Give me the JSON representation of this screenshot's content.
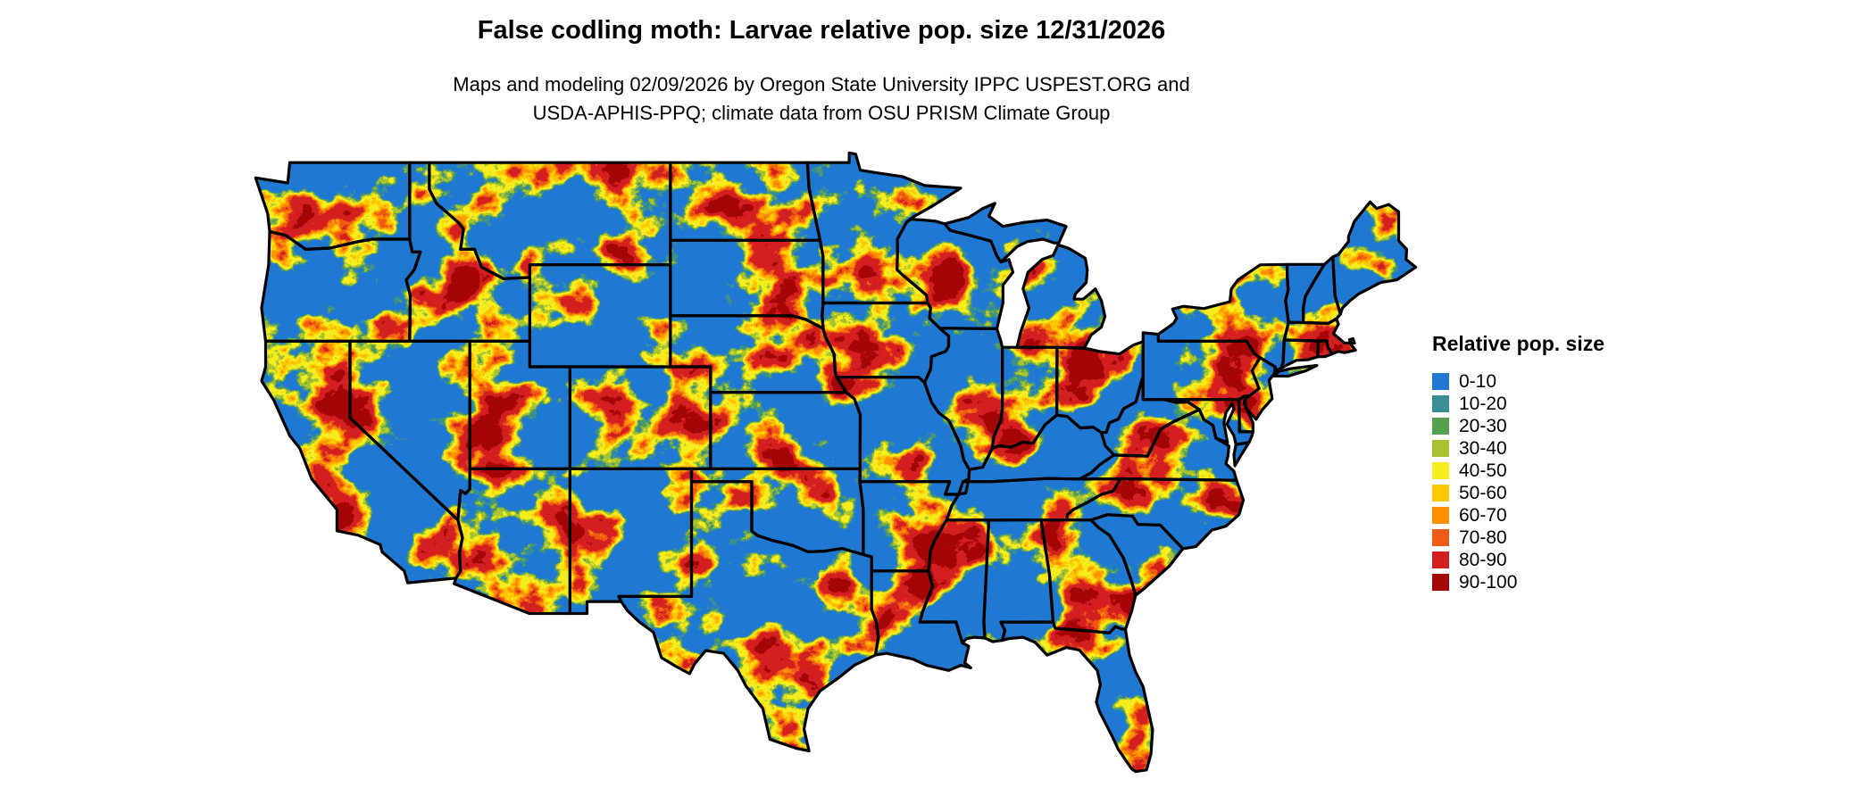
{
  "header": {
    "title": "False codling moth: Larvae relative pop. size 12/31/2026",
    "subtitle_line1": "Maps and modeling 02/09/2026 by Oregon State University IPPC USPEST.ORG and",
    "subtitle_line2": "USDA-APHIS-PPQ; climate data from OSU PRISM Climate Group"
  },
  "legend": {
    "title": "Relative pop. size",
    "items": [
      {
        "label": "0-10",
        "color": "#1f78d1"
      },
      {
        "label": "10-20",
        "color": "#3a8f96"
      },
      {
        "label": "20-30",
        "color": "#53a04f"
      },
      {
        "label": "30-40",
        "color": "#a8c232"
      },
      {
        "label": "40-50",
        "color": "#f5ee1e"
      },
      {
        "label": "50-60",
        "color": "#ffc800"
      },
      {
        "label": "60-70",
        "color": "#ff9000"
      },
      {
        "label": "70-80",
        "color": "#f05a14"
      },
      {
        "label": "80-90",
        "color": "#d41f1f"
      },
      {
        "label": "90-100",
        "color": "#a50707"
      }
    ]
  },
  "map": {
    "region_label": "Continental United States",
    "border_color": "#000000"
  },
  "chart_data": {
    "type": "heatmap",
    "title": "False codling moth: Larvae relative pop. size 12/31/2026",
    "legend_title": "Relative pop. size",
    "value_range": [
      0,
      100
    ],
    "region": "Continental United States (state boundaries shown)",
    "classes": [
      {
        "range": "0-10",
        "color": "#1f78d1"
      },
      {
        "range": "10-20",
        "color": "#3a8f96"
      },
      {
        "range": "20-30",
        "color": "#53a04f"
      },
      {
        "range": "30-40",
        "color": "#a8c232"
      },
      {
        "range": "40-50",
        "color": "#f5ee1e"
      },
      {
        "range": "50-60",
        "color": "#ffc800"
      },
      {
        "range": "60-70",
        "color": "#ff9000"
      },
      {
        "range": "70-80",
        "color": "#f05a14"
      },
      {
        "range": "80-90",
        "color": "#d41f1f"
      },
      {
        "range": "90-100",
        "color": "#a50707"
      }
    ]
  }
}
